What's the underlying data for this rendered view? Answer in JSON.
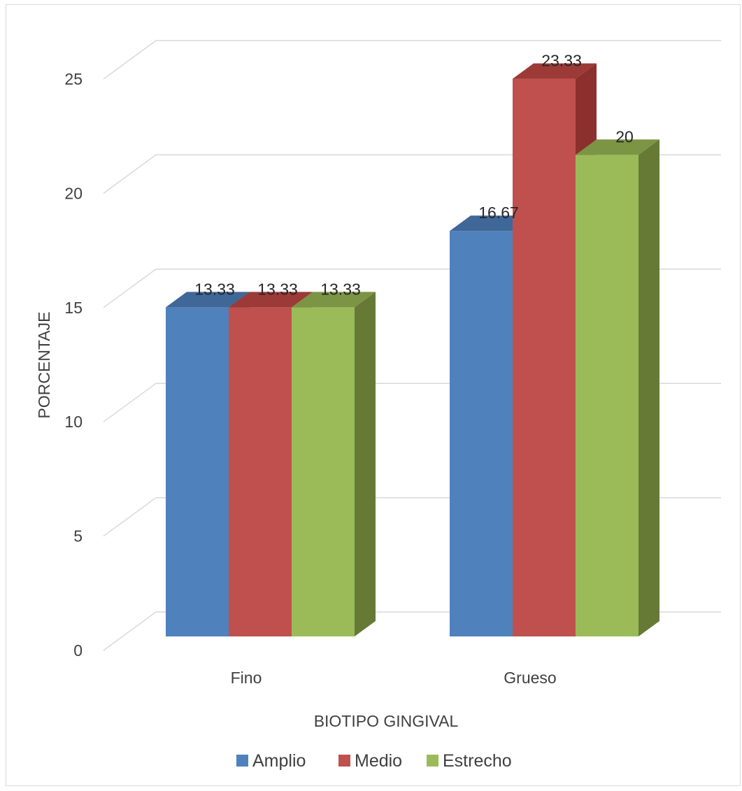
{
  "chart_data": {
    "type": "bar",
    "title": "",
    "xlabel": "BIOTIPO GINGIVAL",
    "ylabel": "PORCENTAJE",
    "categories": [
      "Fino",
      "Grueso"
    ],
    "series": [
      {
        "name": "Amplio",
        "color": "#4F81BD",
        "side": "#3A6494",
        "top": "#3F6797",
        "values": [
          13.33,
          16.67
        ]
      },
      {
        "name": "Medio",
        "color": "#C0504D",
        "side": "#8B302D",
        "top": "#9B3A37",
        "values": [
          13.33,
          23.33
        ]
      },
      {
        "name": "Estrecho",
        "color": "#9BBB59",
        "side": "#667A36",
        "top": "#7C9545",
        "values": [
          13.33,
          20
        ]
      }
    ],
    "data_labels": [
      [
        "13.33",
        "16.67"
      ],
      [
        "13.33",
        "23.33"
      ],
      [
        "13.33",
        "20"
      ]
    ],
    "ylim": [
      0,
      25
    ],
    "yticks": [
      "0",
      "5",
      "10",
      "15",
      "20",
      "25"
    ],
    "grid": true,
    "legend": "bottom"
  }
}
